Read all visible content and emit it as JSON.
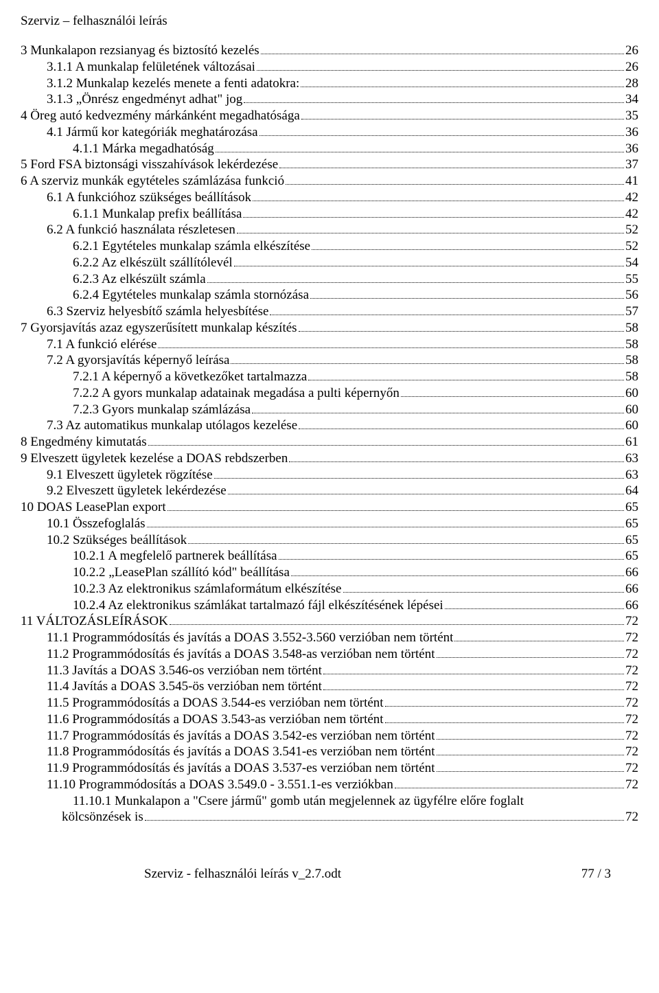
{
  "header": "Szerviz – felhasználói leírás",
  "footer": {
    "left": "Szerviz - felhasználói leírás v_2.7.odt",
    "right": "77 / 3"
  },
  "toc": [
    {
      "indent": 0,
      "text": "3 Munkalapon rezsianyag és biztosító kezelés",
      "page": "26"
    },
    {
      "indent": 1,
      "text": "3.1.1 A munkalap felületének változásai",
      "page": "26"
    },
    {
      "indent": 1,
      "text": "3.1.2 Munkalap kezelés menete a fenti adatokra:",
      "page": "28"
    },
    {
      "indent": 1,
      "text": "3.1.3 „Önrész engedményt adhat\" jog",
      "page": "34"
    },
    {
      "indent": 0,
      "text": "4 Öreg autó kedvezmény márkánként megadhatósága",
      "page": "35"
    },
    {
      "indent": 1,
      "text": "4.1 Jármű kor kategóriák meghatározása",
      "page": "36"
    },
    {
      "indent": 2,
      "text": "4.1.1 Márka megadhatóság",
      "page": "36"
    },
    {
      "indent": 0,
      "text": "5 Ford FSA biztonsági visszahívások lekérdezése",
      "page": "37"
    },
    {
      "indent": 0,
      "text": "6 A szerviz munkák egytételes számlázása funkció",
      "page": "41"
    },
    {
      "indent": 1,
      "text": "6.1 A funkcióhoz szükséges beállítások",
      "page": "42"
    },
    {
      "indent": 2,
      "text": "6.1.1 Munkalap prefix beállítása",
      "page": "42"
    },
    {
      "indent": 1,
      "text": "6.2 A funkció használata részletesen",
      "page": "52"
    },
    {
      "indent": 2,
      "text": "6.2.1 Egytételes munkalap számla elkészítése",
      "page": "52"
    },
    {
      "indent": 2,
      "text": "6.2.2 Az elkészült szállítólevél",
      "page": "54"
    },
    {
      "indent": 2,
      "text": "6.2.3 Az elkészült számla",
      "page": "55"
    },
    {
      "indent": 2,
      "text": "6.2.4 Egytételes munkalap számla stornózása",
      "page": "56"
    },
    {
      "indent": 1,
      "text": "6.3 Szerviz helyesbítő számla helyesbítése",
      "page": "57"
    },
    {
      "indent": 0,
      "text": "7 Gyorsjavítás azaz egyszerűsített munkalap készítés",
      "page": "58"
    },
    {
      "indent": 1,
      "text": "7.1 A funkció elérése",
      "page": "58"
    },
    {
      "indent": 1,
      "text": "7.2 A gyorsjavítás képernyő leírása",
      "page": "58"
    },
    {
      "indent": 2,
      "text": "7.2.1 A képernyő a következőket tartalmazza",
      "page": "58"
    },
    {
      "indent": 2,
      "text": "7.2.2 A gyors munkalap adatainak megadása a pulti képernyőn",
      "page": "60"
    },
    {
      "indent": 2,
      "text": "7.2.3 Gyors munkalap számlázása",
      "page": "60"
    },
    {
      "indent": 1,
      "text": "7.3 Az automatikus munkalap utólagos kezelése",
      "page": "60"
    },
    {
      "indent": 0,
      "text": "8 Engedmény kimutatás",
      "page": "61"
    },
    {
      "indent": 0,
      "text": "9 Elveszett ügyletek kezelése a DOAS rebdszerben",
      "page": "63"
    },
    {
      "indent": 1,
      "text": "9.1 Elveszett ügyletek rögzítése",
      "page": "63"
    },
    {
      "indent": 1,
      "text": "9.2 Elveszett ügyletek lekérdezése",
      "page": "64"
    },
    {
      "indent": 0,
      "text": "10 DOAS LeasePlan export",
      "page": "65"
    },
    {
      "indent": 1,
      "text": "10.1 Összefoglalás",
      "page": "65"
    },
    {
      "indent": 1,
      "text": "10.2 Szükséges beállítások",
      "page": "65"
    },
    {
      "indent": 2,
      "text": "10.2.1 A megfelelő partnerek beállítása",
      "page": "65"
    },
    {
      "indent": 2,
      "text": "10.2.2 „LeasePlan szállító kód\" beállítása",
      "page": "66"
    },
    {
      "indent": 2,
      "text": "10.2.3 Az elektronikus számlaformátum elkészítése",
      "page": "66"
    },
    {
      "indent": 2,
      "text": "10.2.4 Az elektronikus számlákat tartalmazó fájl elkészítésének lépései",
      "page": "66"
    },
    {
      "indent": 0,
      "text": "11 VÁLTOZÁSLEÍRÁSOK",
      "page": "72"
    },
    {
      "indent": 1,
      "text": "11.1 Programmódosítás és javítás a DOAS 3.552-3.560 verzióban nem történt",
      "page": "72"
    },
    {
      "indent": 1,
      "text": "11.2 Programmódosítás és javítás a DOAS 3.548-as verzióban nem történt",
      "page": "72"
    },
    {
      "indent": 1,
      "text": "11.3 Javítás a DOAS 3.546-os verzióban nem történt",
      "page": "72"
    },
    {
      "indent": 1,
      "text": "11.4 Javítás a DOAS 3.545-ös verzióban nem történt",
      "page": "72"
    },
    {
      "indent": 1,
      "text": "11.5 Programmódosítás a DOAS 3.544-es verzióban nem történt",
      "page": "72"
    },
    {
      "indent": 1,
      "text": "11.6 Programmódosítás a DOAS 3.543-as verzióban nem történt",
      "page": "72"
    },
    {
      "indent": 1,
      "text": "11.7 Programmódosítás és javítás a DOAS 3.542-es verzióban nem történt",
      "page": "72"
    },
    {
      "indent": 1,
      "text": "11.8 Programmódosítás és javítás a DOAS 3.541-es verzióban nem történt",
      "page": "72"
    },
    {
      "indent": 1,
      "text": "11.9 Programmódosítás és javítás a DOAS 3.537-es verzióban nem történt",
      "page": "72"
    },
    {
      "indent": 1,
      "text": "11.10 Programmódosítás a DOAS 3.549.0 - 3.551.1-es verziókban",
      "page": "72"
    },
    {
      "indent": 3,
      "text": "11.10.1 Munkalapon a \"Csere jármű\" gomb után megjelennek az ügyfélre előre foglalt",
      "wrap": "kölcsönzések is",
      "page": "72"
    }
  ]
}
